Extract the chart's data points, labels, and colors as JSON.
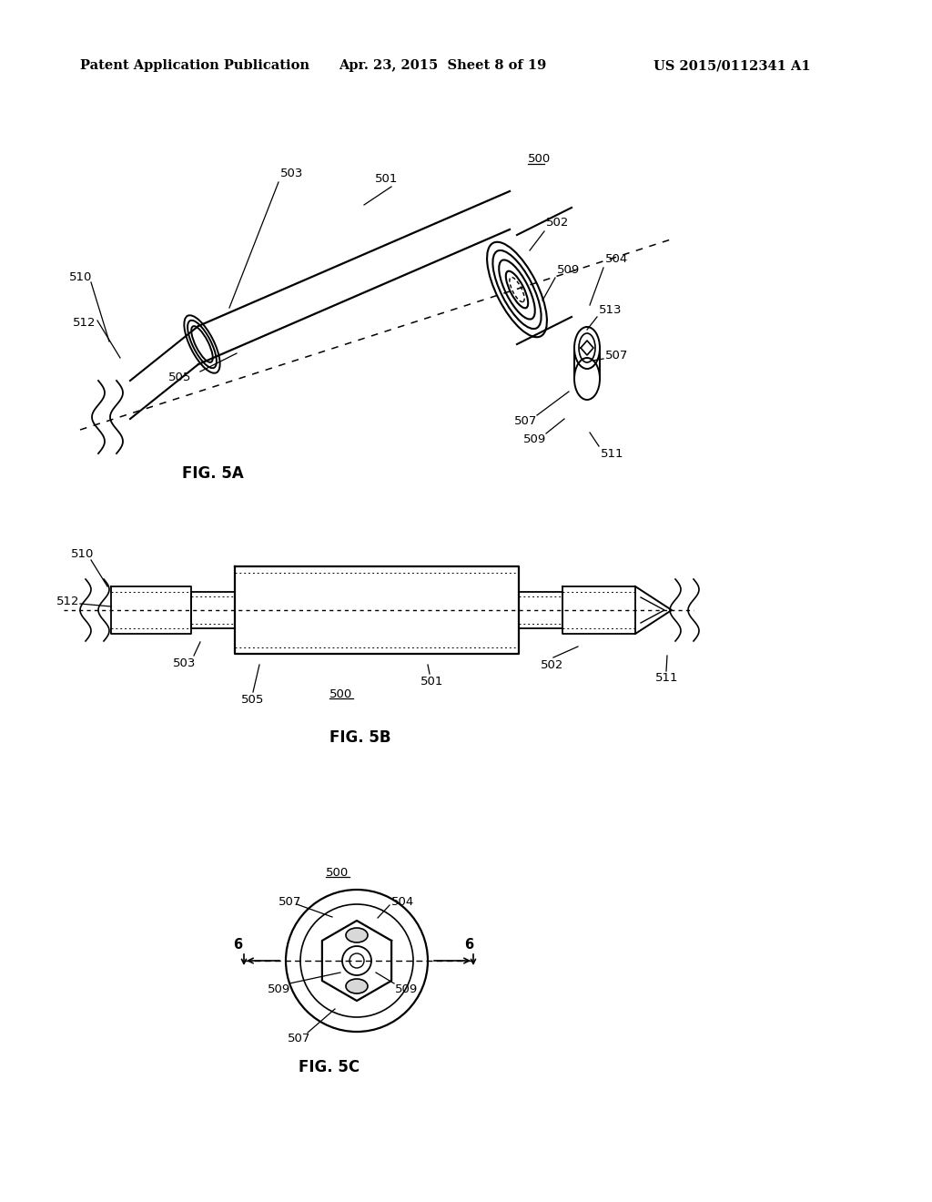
{
  "bg_color": "#ffffff",
  "header_left": "Patent Application Publication",
  "header_mid": "Apr. 23, 2015  Sheet 8 of 19",
  "header_right": "US 2015/0112341 A1",
  "fig5a_label": "FIG. 5A",
  "fig5b_label": "FIG. 5B",
  "fig5c_label": "FIG. 5C",
  "text_color": "#000000",
  "line_color": "#000000",
  "font_size": 9.5,
  "header_font_size": 10.5
}
